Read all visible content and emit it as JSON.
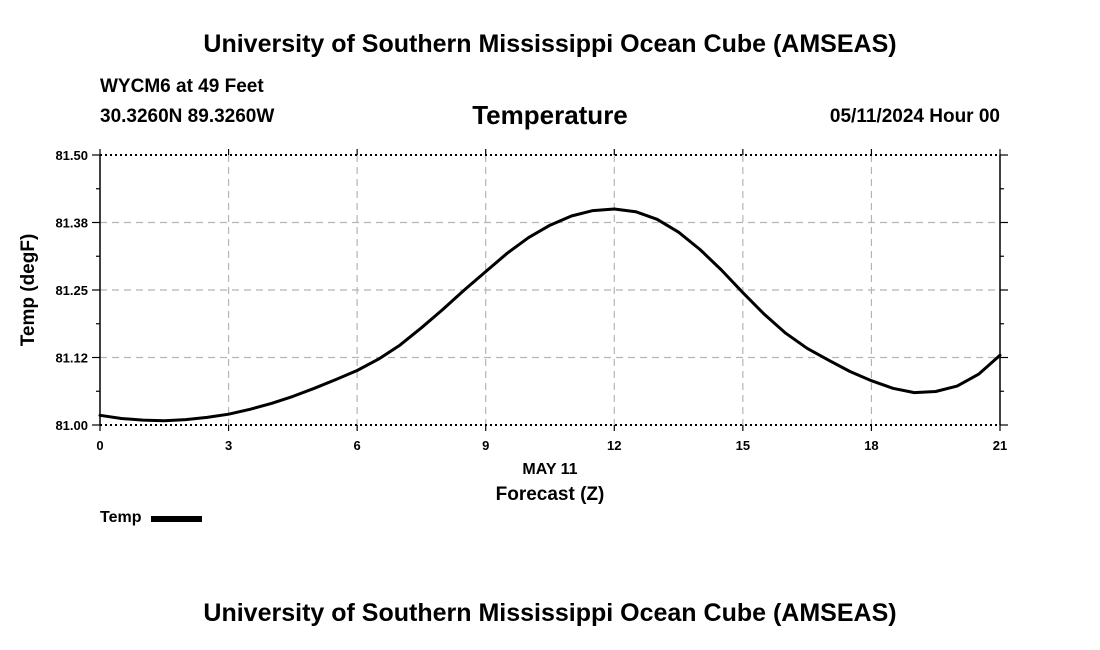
{
  "header": {
    "top_title": "University of Southern Mississippi Ocean Cube (AMSEAS)",
    "station": "WYCM6 at 49 Feet",
    "coords": "30.3260N  89.3260W",
    "chart_title": "Temperature",
    "datetime": "05/11/2024 Hour 00"
  },
  "footer": {
    "bottom_title": "University of Southern Mississippi Ocean Cube (AMSEAS)"
  },
  "legend": {
    "label": "Temp"
  },
  "chart_data": {
    "type": "line",
    "title": "Temperature",
    "xlabel": "Forecast (Z)",
    "xsublabel": "MAY 11",
    "ylabel": "Temp (degF)",
    "xlim": [
      0,
      21
    ],
    "ylim": [
      81.0,
      81.5
    ],
    "xticks": [
      0,
      3,
      6,
      9,
      12,
      15,
      18,
      21
    ],
    "yticks": [
      81.0,
      81.125,
      81.25,
      81.375,
      81.5
    ],
    "ytick_labels": [
      "81.00",
      "81.12",
      "81.25",
      "81.38",
      "81.50"
    ],
    "grid": true,
    "series": [
      {
        "name": "Temp",
        "x": [
          0,
          0.5,
          1,
          1.5,
          2,
          2.5,
          3,
          3.5,
          4,
          4.5,
          5,
          5.5,
          6,
          6.5,
          7,
          7.5,
          8,
          8.5,
          9,
          9.5,
          10,
          10.5,
          11,
          11.5,
          12,
          12.5,
          13,
          13.5,
          14,
          14.5,
          15,
          15.5,
          16,
          16.5,
          17,
          17.5,
          18,
          18.5,
          19,
          19.5,
          20,
          20.5,
          21
        ],
        "values": [
          81.018,
          81.012,
          81.009,
          81.008,
          81.01,
          81.014,
          81.02,
          81.029,
          81.04,
          81.053,
          81.068,
          81.084,
          81.101,
          81.122,
          81.148,
          81.18,
          81.214,
          81.25,
          81.284,
          81.318,
          81.347,
          81.37,
          81.387,
          81.397,
          81.4,
          81.395,
          81.381,
          81.357,
          81.325,
          81.287,
          81.245,
          81.205,
          81.17,
          81.142,
          81.12,
          81.099,
          81.082,
          81.068,
          81.06,
          81.062,
          81.072,
          81.094,
          81.129
        ]
      }
    ]
  }
}
